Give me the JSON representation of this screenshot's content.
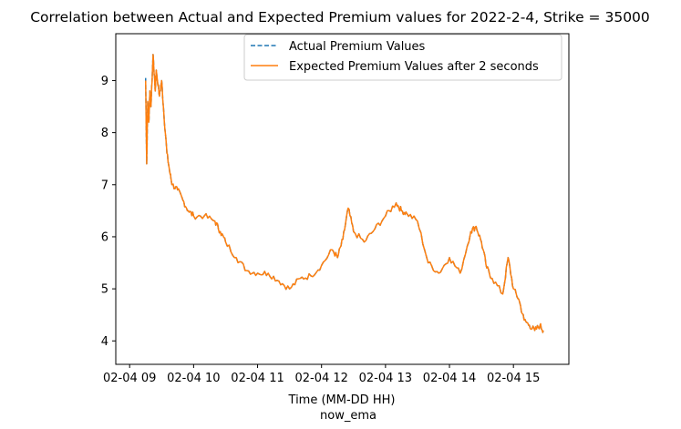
{
  "chart_data": {
    "type": "line",
    "title": "Correlation between Actual and Expected Premium values for 2022-2-4, Strike = 35000",
    "xlabel": "Time (MM-DD HH)",
    "xlabel2": "now_ema",
    "ylabel": "",
    "xlim": [
      "2022-02-04 08:47",
      "2022-02-04 15:52"
    ],
    "ylim": [
      3.55,
      9.9
    ],
    "x_tick_labels": [
      "02-04 09",
      "02-04 10",
      "02-04 11",
      "02-04 12",
      "02-04 13",
      "02-04 14",
      "02-04 15"
    ],
    "y_ticks": [
      4,
      5,
      6,
      7,
      8,
      9
    ],
    "legend_position": "upper right",
    "x": [
      "09:15",
      "09:16",
      "09:17",
      "09:18",
      "09:19",
      "09:20",
      "09:22",
      "09:24",
      "09:25",
      "09:28",
      "09:30",
      "09:32",
      "09:35",
      "09:38",
      "09:40",
      "09:45",
      "09:50",
      "09:55",
      "10:00",
      "10:10",
      "10:20",
      "10:25",
      "10:30",
      "10:40",
      "10:50",
      "11:00",
      "11:10",
      "11:20",
      "11:30",
      "11:40",
      "11:50",
      "12:00",
      "12:10",
      "12:15",
      "12:20",
      "12:25",
      "12:30",
      "12:40",
      "12:50",
      "13:00",
      "13:10",
      "13:15",
      "13:20",
      "13:30",
      "13:40",
      "13:50",
      "14:00",
      "14:10",
      "14:20",
      "14:25",
      "14:30",
      "14:35",
      "14:40",
      "14:50",
      "14:55",
      "15:00",
      "15:05",
      "15:10",
      "15:15",
      "15:20",
      "15:25",
      "15:28"
    ],
    "series": [
      {
        "name": "Actual Premium Values",
        "color": "#1f77b4",
        "style": "dashed",
        "values": [
          9.05,
          7.4,
          8.6,
          8.2,
          8.8,
          8.5,
          9.5,
          8.8,
          9.2,
          8.7,
          9.0,
          8.4,
          7.6,
          7.2,
          7.0,
          6.9,
          6.7,
          6.5,
          6.4,
          6.4,
          6.3,
          6.1,
          5.9,
          5.6,
          5.35,
          5.3,
          5.3,
          5.15,
          5.0,
          5.2,
          5.25,
          5.45,
          5.75,
          5.6,
          5.95,
          6.55,
          6.1,
          5.9,
          6.15,
          6.4,
          6.65,
          6.5,
          6.45,
          6.3,
          5.5,
          5.3,
          5.6,
          5.3,
          6.1,
          6.2,
          5.9,
          5.4,
          5.2,
          4.9,
          5.6,
          5.0,
          4.8,
          4.4,
          4.3,
          4.2,
          4.3,
          4.2
        ]
      },
      {
        "name": "Expected Premium Values after 2 seconds",
        "color": "#ff7f0e",
        "style": "solid",
        "values": [
          9.0,
          7.4,
          8.6,
          8.2,
          8.8,
          8.5,
          9.5,
          8.8,
          9.2,
          8.7,
          9.0,
          8.4,
          7.6,
          7.2,
          7.0,
          6.9,
          6.7,
          6.5,
          6.4,
          6.4,
          6.3,
          6.1,
          5.9,
          5.6,
          5.35,
          5.3,
          5.3,
          5.15,
          5.0,
          5.2,
          5.25,
          5.45,
          5.75,
          5.6,
          5.95,
          6.55,
          6.1,
          5.9,
          6.15,
          6.4,
          6.65,
          6.5,
          6.45,
          6.3,
          5.5,
          5.3,
          5.6,
          5.3,
          6.1,
          6.2,
          5.9,
          5.4,
          5.2,
          4.9,
          5.6,
          5.0,
          4.8,
          4.4,
          4.3,
          4.2,
          4.3,
          4.2
        ]
      }
    ]
  }
}
